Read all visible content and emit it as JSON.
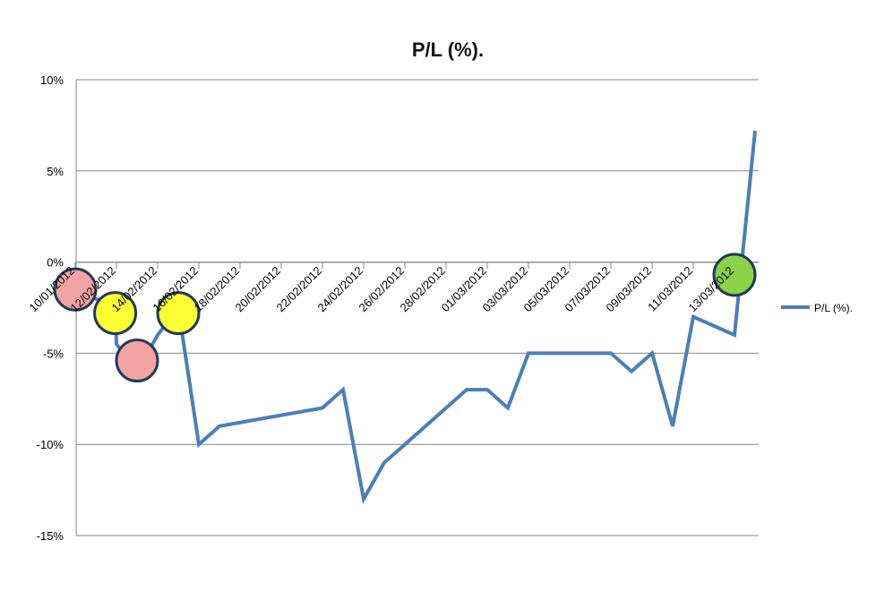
{
  "chart_data": {
    "type": "line",
    "title": "P/L (%).",
    "xlabel": "",
    "ylabel": "",
    "x_tick_labels": [
      "10/01/2012",
      "12/02/2012",
      "14/02/2012",
      "16/02/2012",
      "18/02/2012",
      "20/02/2012",
      "22/02/2012",
      "24/02/2012",
      "26/02/2012",
      "28/02/2012",
      "01/03/2012",
      "03/03/2012",
      "05/03/2012",
      "07/03/2012",
      "09/03/2012",
      "11/03/2012",
      "13/03/2012"
    ],
    "y_tick_labels": [
      "10%",
      "5%",
      "0%",
      "-5%",
      "-10%",
      "-15%"
    ],
    "ylim": [
      -15,
      10
    ],
    "series": [
      {
        "name": "P/L (%).",
        "color": "#4A7EBB",
        "x": [
          "10/01/2012",
          "11/02/2012",
          "12/02/2012",
          "13/02/2012",
          "14/02/2012",
          "15/02/2012",
          "16/02/2012",
          "17/02/2012",
          "18/02/2012",
          "19/02/2012",
          "20/02/2012",
          "21/02/2012",
          "22/02/2012",
          "23/02/2012",
          "24/02/2012",
          "25/02/2012",
          "26/02/2012",
          "27/02/2012",
          "28/02/2012",
          "29/02/2012",
          "01/03/2012",
          "02/03/2012",
          "03/03/2012",
          "04/03/2012",
          "05/03/2012",
          "06/03/2012",
          "07/03/2012",
          "08/03/2012",
          "09/03/2012",
          "10/03/2012",
          "11/03/2012",
          "12/03/2012",
          "13/03/2012",
          "14/03/2012"
        ],
        "values": [
          -1.5,
          -2.5,
          -4.5,
          -6.0,
          -4.0,
          -2.5,
          -10.0,
          -9.0,
          -8.8,
          -8.6,
          -8.4,
          -8.2,
          -8.0,
          -7.0,
          -13.0,
          -11.0,
          -10.0,
          -9.0,
          -8.0,
          -7.0,
          -7.0,
          -8.0,
          -5.0,
          -5.0,
          -5.0,
          -5.0,
          -5.0,
          -6.0,
          -5.0,
          -9.0,
          -3.0,
          -3.5,
          -4.0,
          7.2
        ]
      }
    ],
    "highlight_markers": [
      {
        "x": "10/01/2012",
        "y": -1.5,
        "color": "#F4A3A3"
      },
      {
        "x": "11/02/2012",
        "y": -2.8,
        "color": "#FFFF33"
      },
      {
        "x": "13/02/2012",
        "y": -5.4,
        "color": "#F4A3A3"
      },
      {
        "x": "15/02/2012",
        "y": -2.8,
        "color": "#FFFF33"
      },
      {
        "x": "13/03/2012",
        "y": -0.7,
        "color": "#8CD248"
      }
    ],
    "grid": "horizontal",
    "legend_position": "right"
  }
}
